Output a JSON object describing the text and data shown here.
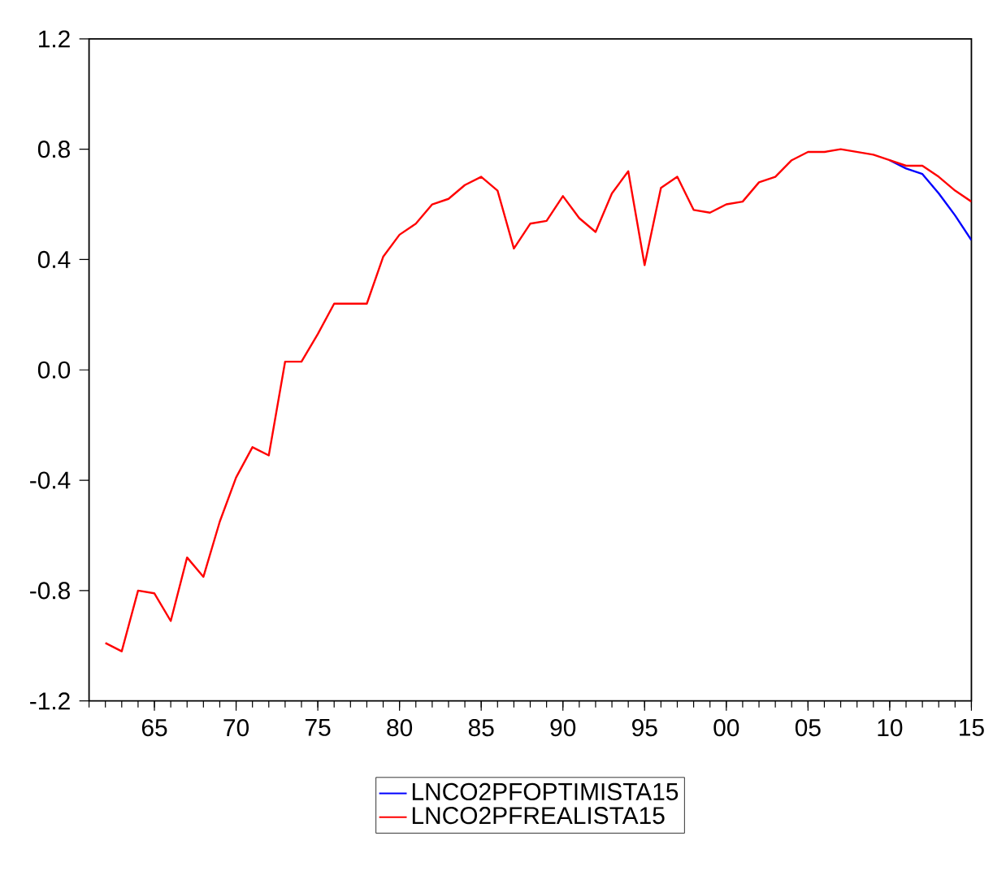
{
  "chart_data": {
    "type": "line",
    "x": [
      1962,
      1963,
      1964,
      1965,
      1966,
      1967,
      1968,
      1969,
      1970,
      1971,
      1972,
      1973,
      1974,
      1975,
      1976,
      1977,
      1978,
      1979,
      1980,
      1981,
      1982,
      1983,
      1984,
      1985,
      1986,
      1987,
      1988,
      1989,
      1990,
      1991,
      1992,
      1993,
      1994,
      1995,
      1996,
      1997,
      1998,
      1999,
      2000,
      2001,
      2002,
      2003,
      2004,
      2005,
      2006,
      2007,
      2008,
      2009,
      2010,
      2011,
      2012,
      2013,
      2014,
      2015
    ],
    "series": [
      {
        "name": "LNCO2PFOPTIMISTA15",
        "color": "#0000ff",
        "values": [
          null,
          null,
          null,
          null,
          null,
          null,
          null,
          null,
          null,
          null,
          null,
          null,
          null,
          null,
          null,
          null,
          null,
          null,
          null,
          null,
          null,
          null,
          null,
          null,
          null,
          null,
          null,
          null,
          null,
          null,
          null,
          null,
          null,
          null,
          null,
          null,
          null,
          null,
          null,
          null,
          null,
          null,
          null,
          null,
          null,
          null,
          null,
          null,
          0.76,
          0.73,
          0.71,
          0.64,
          0.56,
          0.47
        ]
      },
      {
        "name": "LNCO2PFREALISTA15",
        "color": "#ff0000",
        "values": [
          -0.99,
          -1.02,
          -0.8,
          -0.81,
          -0.91,
          -0.68,
          -0.75,
          -0.55,
          -0.39,
          -0.28,
          -0.31,
          0.03,
          0.03,
          0.13,
          0.24,
          0.24,
          0.24,
          0.41,
          0.49,
          0.53,
          0.6,
          0.62,
          0.67,
          0.7,
          0.65,
          0.44,
          0.53,
          0.54,
          0.63,
          0.55,
          0.5,
          0.64,
          0.72,
          0.38,
          0.66,
          0.7,
          0.58,
          0.57,
          0.6,
          0.61,
          0.68,
          0.7,
          0.76,
          0.79,
          0.79,
          0.8,
          0.79,
          0.78,
          0.76,
          0.74,
          0.74,
          0.7,
          0.65,
          0.61
        ]
      }
    ],
    "xlim": [
      1961,
      2015
    ],
    "xticks": [
      {
        "value": 1965,
        "label": "65"
      },
      {
        "value": 1970,
        "label": "70"
      },
      {
        "value": 1975,
        "label": "75"
      },
      {
        "value": 1980,
        "label": "80"
      },
      {
        "value": 1985,
        "label": "85"
      },
      {
        "value": 1990,
        "label": "90"
      },
      {
        "value": 1995,
        "label": "95"
      },
      {
        "value": 2000,
        "label": "00"
      },
      {
        "value": 2005,
        "label": "05"
      },
      {
        "value": 2010,
        "label": "10"
      },
      {
        "value": 2015,
        "label": "15"
      }
    ],
    "ylim": [
      -1.2,
      1.2
    ],
    "yticks": [
      -1.2,
      -0.8,
      -0.4,
      {
        "value": 0,
        "label": "0.0"
      },
      0.4,
      0.8,
      1.2
    ],
    "legend": "bottom",
    "grid": false,
    "marker": "none",
    "line_style": "solid"
  }
}
